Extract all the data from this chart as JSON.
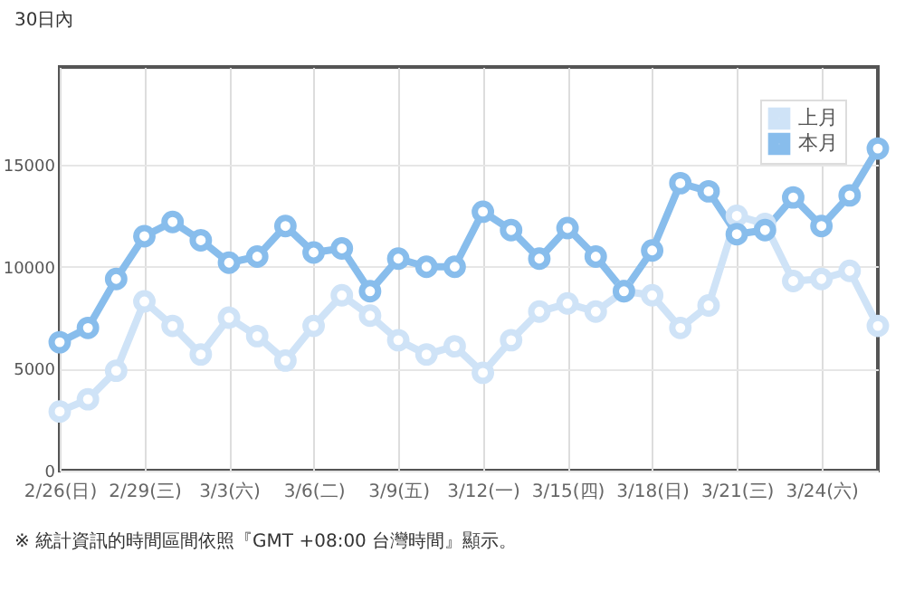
{
  "chart_data": {
    "type": "line",
    "categories": [
      "2/26(日)",
      null,
      null,
      "2/29(三)",
      null,
      null,
      "3/3(六)",
      null,
      null,
      "3/6(二)",
      null,
      null,
      "3/9(五)",
      null,
      null,
      "3/12(一)",
      null,
      null,
      "3/15(四)",
      null,
      null,
      "3/18(日)",
      null,
      null,
      "3/21(三)",
      null,
      null,
      "3/24(六)",
      null,
      null
    ],
    "series": [
      {
        "name": "上月",
        "color": "#cfe3f7",
        "values": [
          2900,
          3500,
          4900,
          8300,
          7100,
          5700,
          7500,
          6600,
          5400,
          7100,
          8600,
          7600,
          6400,
          5700,
          6100,
          4800,
          6400,
          7800,
          8200,
          7800,
          8800,
          8600,
          7000,
          8100,
          12500,
          12100,
          9300,
          9400,
          9800,
          7100
        ]
      },
      {
        "name": "本月",
        "color": "#88bdec",
        "values": [
          6300,
          7000,
          9400,
          11500,
          12200,
          11300,
          10200,
          10500,
          12000,
          10700,
          10900,
          8800,
          10400,
          10000,
          10000,
          12700,
          11800,
          10400,
          11900,
          10500,
          8800,
          10800,
          14100,
          13700,
          11600,
          11800,
          13400,
          12000,
          13500,
          15800
        ]
      }
    ],
    "ylim": [
      0,
      19800
    ],
    "yticks": [
      0,
      5000,
      10000,
      15000
    ],
    "grid": true,
    "legend": "top right",
    "marker": "circle",
    "line_style": "solid",
    "annotations": [
      "30日內",
      "※ 統計資訊的時間區間依照『GMT +08:00 台灣時間』顯示。"
    ]
  }
}
